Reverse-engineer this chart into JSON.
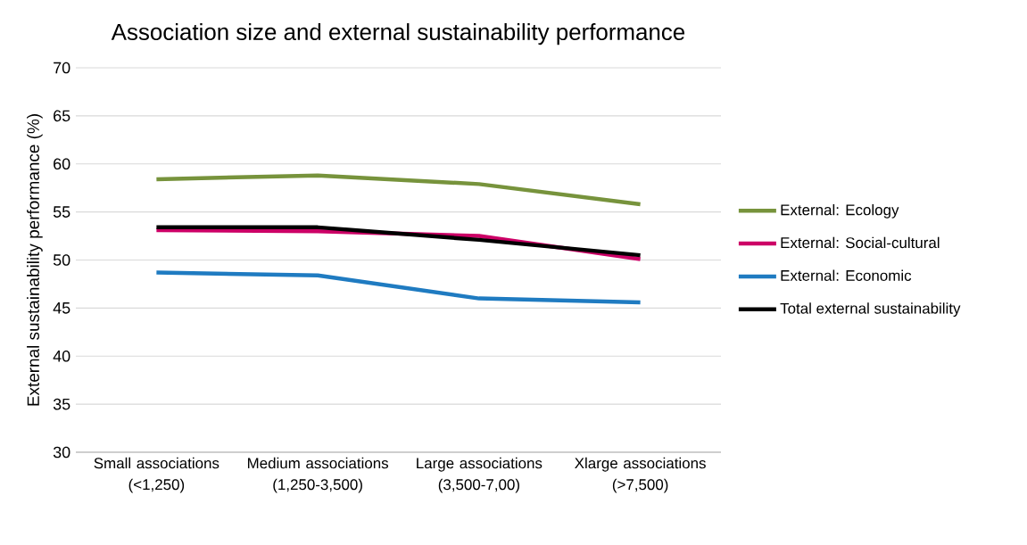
{
  "chart_data": {
    "type": "line",
    "title": "Association size and external sustainability performance",
    "ylabel": "External sustainability performance (%)",
    "categories": [
      "Small associations (<1,250)",
      "Medium associations (1,250-3,500)",
      "Large associations (3,500-7,00)",
      "Xlarge associations (>7,500)"
    ],
    "series": [
      {
        "name": "External: Ecology",
        "color": "#77933c",
        "values": [
          58.4,
          58.8,
          57.9,
          55.8
        ]
      },
      {
        "name": "External: Social-cultural",
        "color": "#cc0066",
        "values": [
          53.1,
          53.0,
          52.5,
          50.1
        ]
      },
      {
        "name": "External: Economic",
        "color": "#1f7bc1",
        "values": [
          48.7,
          48.4,
          46.0,
          45.6
        ]
      },
      {
        "name": "Total external sustainability",
        "color": "#000000",
        "values": [
          53.4,
          53.4,
          52.1,
          50.5
        ]
      }
    ],
    "ylim": [
      30,
      70
    ],
    "yticks": [
      30,
      35,
      40,
      45,
      50,
      55,
      60,
      65,
      70
    ],
    "grid": "y",
    "legend": "right",
    "marker": "none",
    "line_style": "solid"
  }
}
